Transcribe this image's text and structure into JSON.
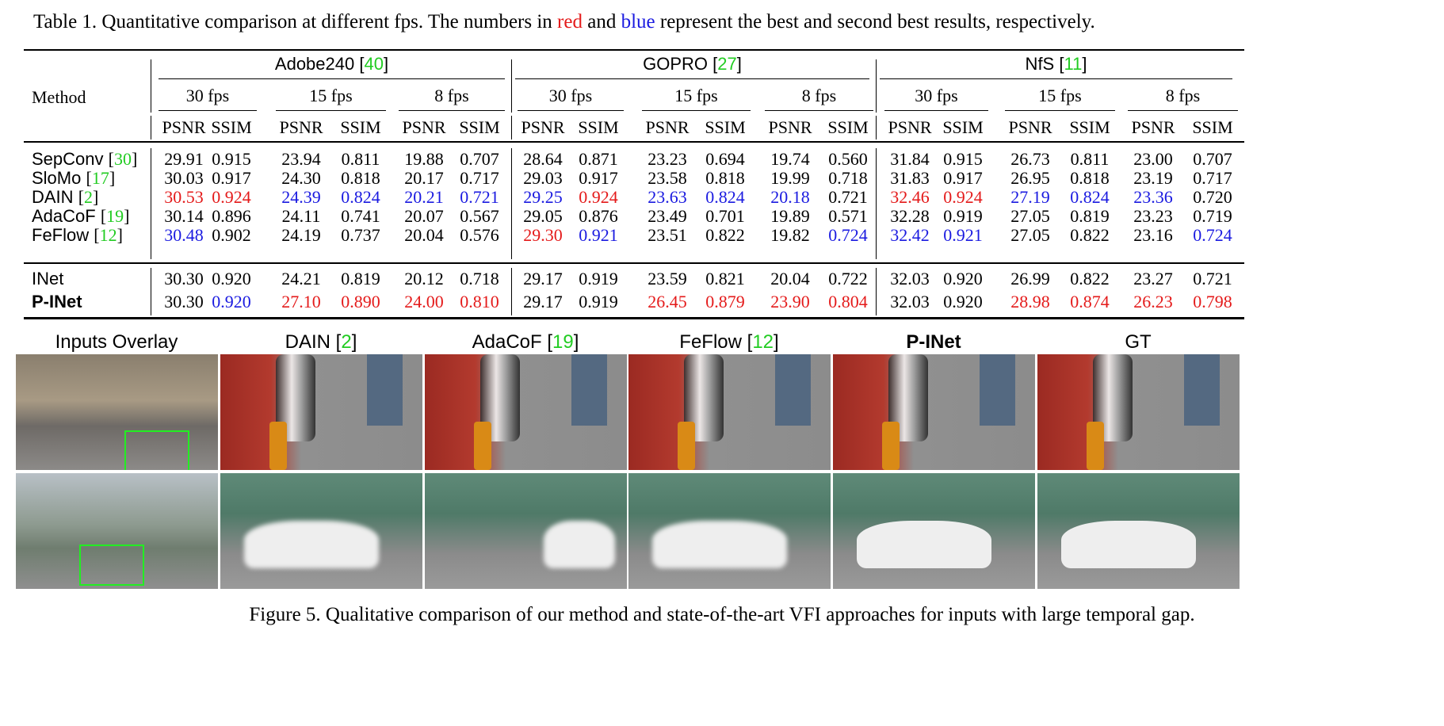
{
  "table_caption": {
    "prefix": "Table 1. Quantitative comparison at different fps. The numbers in ",
    "red_word": "red",
    "mid": " and ",
    "blue_word": "blue",
    "suffix": " represent the best and second best results, respectively."
  },
  "colors": {
    "best": "#e41a1a",
    "second": "#1a1ae0",
    "reference": "#22cc22"
  },
  "table": {
    "method_header": "Method",
    "datasets": [
      {
        "name": "Adobe240",
        "ref": "40"
      },
      {
        "name": "GOPRO",
        "ref": "27"
      },
      {
        "name": "NfS",
        "ref": "11"
      }
    ],
    "fps": [
      "30 fps",
      "15 fps",
      "8 fps"
    ],
    "metrics": [
      "PSNR",
      "SSIM"
    ],
    "rows": [
      {
        "method": "SepConv",
        "ref": "30",
        "values": [
          "29.91",
          "0.915",
          "23.94",
          "0.811",
          "19.88",
          "0.707",
          "28.64",
          "0.871",
          "23.23",
          "0.694",
          "19.74",
          "0.560",
          "31.84",
          "0.915",
          "26.73",
          "0.811",
          "23.00",
          "0.707"
        ],
        "marks": "------------------"
      },
      {
        "method": "SloMo",
        "ref": "17",
        "values": [
          "30.03",
          "0.917",
          "24.30",
          "0.818",
          "20.17",
          "0.717",
          "29.03",
          "0.917",
          "23.58",
          "0.818",
          "19.99",
          "0.718",
          "31.83",
          "0.917",
          "26.95",
          "0.818",
          "23.19",
          "0.717"
        ],
        "marks": "------------------"
      },
      {
        "method": "DAIN",
        "ref": "2",
        "values": [
          "30.53",
          "0.924",
          "24.39",
          "0.824",
          "20.21",
          "0.721",
          "29.25",
          "0.924",
          "23.63",
          "0.824",
          "20.18",
          "0.721",
          "32.46",
          "0.924",
          "27.19",
          "0.824",
          "23.36",
          "0.720"
        ],
        "marks": "rrbbbbbrbbb-rrbbb-"
      },
      {
        "method": "AdaCoF",
        "ref": "19",
        "values": [
          "30.14",
          "0.896",
          "24.11",
          "0.741",
          "20.07",
          "0.567",
          "29.05",
          "0.876",
          "23.49",
          "0.701",
          "19.89",
          "0.571",
          "32.28",
          "0.919",
          "27.05",
          "0.819",
          "23.23",
          "0.719"
        ],
        "marks": "------------------"
      },
      {
        "method": "FeFlow",
        "ref": "12",
        "values": [
          "30.48",
          "0.902",
          "24.19",
          "0.737",
          "20.04",
          "0.576",
          "29.30",
          "0.921",
          "23.51",
          "0.822",
          "19.82",
          "0.724",
          "32.42",
          "0.921",
          "27.05",
          "0.822",
          "23.16",
          "0.724"
        ],
        "marks": "b-----rb---bbb---b"
      },
      {
        "method": "INet",
        "ref": "",
        "values": [
          "30.30",
          "0.920",
          "24.21",
          "0.819",
          "20.12",
          "0.718",
          "29.17",
          "0.919",
          "23.59",
          "0.821",
          "20.04",
          "0.722",
          "32.03",
          "0.920",
          "26.99",
          "0.822",
          "23.27",
          "0.721"
        ],
        "marks": "------------------"
      },
      {
        "method": "P-INet",
        "ref": "",
        "bold": true,
        "values": [
          "30.30",
          "0.920",
          "27.10",
          "0.890",
          "24.00",
          "0.810",
          "29.17",
          "0.919",
          "26.45",
          "0.879",
          "23.90",
          "0.804",
          "32.03",
          "0.920",
          "28.98",
          "0.874",
          "26.23",
          "0.798"
        ],
        "marks": "-brrrr--rrrr--rrrr"
      }
    ]
  },
  "figure": {
    "panels": [
      {
        "title": "Inputs Overlay",
        "ref": ""
      },
      {
        "title": "DAIN",
        "ref": "2"
      },
      {
        "title": "AdaCoF",
        "ref": "19"
      },
      {
        "title": "FeFlow",
        "ref": "12"
      },
      {
        "title": "P-INet",
        "ref": "",
        "bold": true
      },
      {
        "title": "GT",
        "ref": ""
      }
    ],
    "caption": "Figure 5. Qualitative comparison of our method and state-of-the-art VFI approaches for inputs with large temporal gap."
  }
}
